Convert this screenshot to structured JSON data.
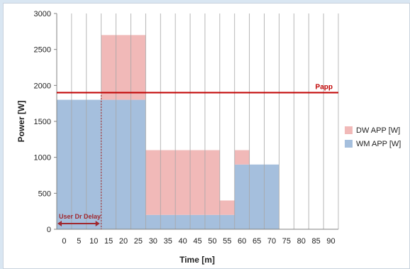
{
  "chart_data": {
    "type": "bar",
    "stacked": true,
    "xlabel": "Time [m]",
    "ylabel": "Power [W]",
    "ylim": [
      0,
      3000
    ],
    "yticks": [
      0,
      500,
      1000,
      1500,
      2000,
      2500,
      3000
    ],
    "categories": [
      "0",
      "5",
      "10",
      "15",
      "20",
      "25",
      "30",
      "35",
      "40",
      "45",
      "50",
      "55",
      "60",
      "65",
      "70",
      "75",
      "80",
      "85",
      "90"
    ],
    "series": [
      {
        "name": "WM APP [W]",
        "color": "#a5bfdd",
        "values": [
          1800,
          1800,
          1800,
          1800,
          1800,
          1800,
          200,
          200,
          200,
          200,
          200,
          200,
          900,
          900,
          900,
          0,
          0,
          0,
          0
        ]
      },
      {
        "name": "DW APP [W]",
        "color": "#f1b9b8",
        "values": [
          0,
          0,
          0,
          900,
          900,
          900,
          900,
          900,
          900,
          900,
          900,
          200,
          200,
          0,
          0,
          0,
          0,
          0,
          0
        ]
      }
    ],
    "reference_line": {
      "label": "Papp",
      "value": 1900,
      "color": "#c00000"
    },
    "annotation": {
      "label": "User Dr Delay",
      "from": 0,
      "to": 15,
      "color": "#a0282e"
    },
    "legend": {
      "position": "right",
      "order": [
        "DW APP [W]",
        "WM APP [W]"
      ]
    },
    "grid": {
      "vertical": true,
      "horizontal": false
    }
  }
}
